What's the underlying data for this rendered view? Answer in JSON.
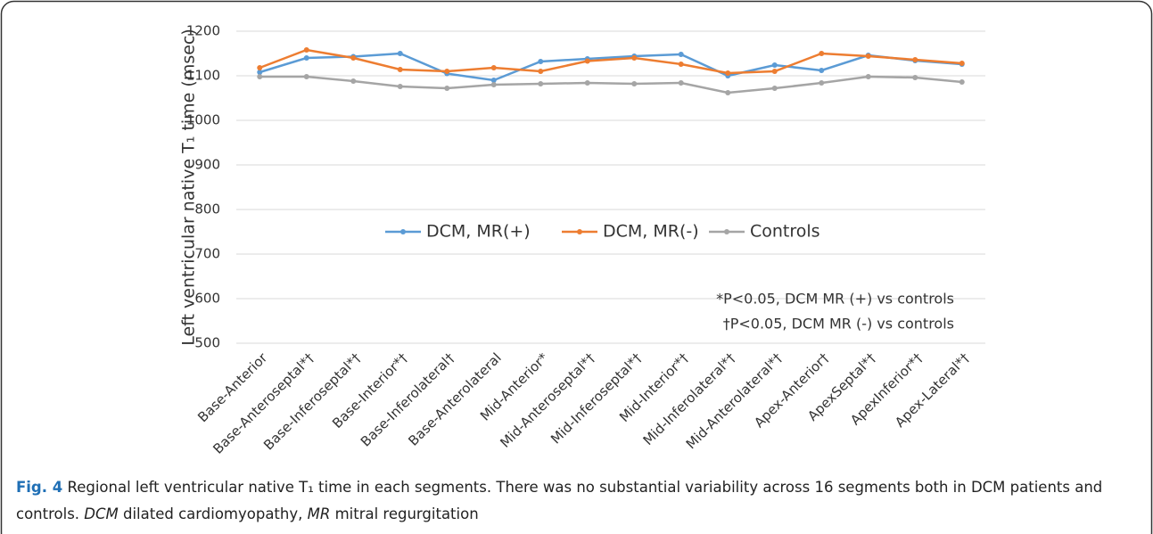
{
  "chart_data": {
    "type": "line",
    "ylabel": "Left ventricular native T₁ time (msec)",
    "categories": [
      "Base-Anterior",
      "Base-Anteroseptal*†",
      "Base-Inferoseptal*†",
      "Base-Interior*†",
      "Base-Inferolateral†",
      "Base-Anterolateral",
      "Mid-Anterior*",
      "Mid-Anteroseptal*†",
      "Mid-Inferoseptal*†",
      "Mid-Interior*†",
      "Mid-Inferolateral*†",
      "Mid-Anterolateral*†",
      "Apex-Anterior†",
      "ApexSeptal*†",
      "ApexInferior*†",
      "Apex-Lateral*†"
    ],
    "series": [
      {
        "name": "DCM, MR(+)",
        "color": "#5b9bd5",
        "values": [
          1108,
          1140,
          1143,
          1150,
          1105,
          1090,
          1132,
          1138,
          1144,
          1148,
          1100,
          1124,
          1112,
          1146,
          1134,
          1126
        ]
      },
      {
        "name": "DCM, MR(-)",
        "color": "#ed7d31",
        "values": [
          1118,
          1158,
          1140,
          1114,
          1110,
          1118,
          1110,
          1133,
          1140,
          1126,
          1106,
          1110,
          1150,
          1144,
          1136,
          1128
        ]
      },
      {
        "name": "Controls",
        "color": "#a5a5a5",
        "values": [
          1098,
          1098,
          1088,
          1076,
          1072,
          1080,
          1082,
          1084,
          1082,
          1084,
          1062,
          1072,
          1084,
          1098,
          1096,
          1086
        ]
      }
    ],
    "ylim": [
      500,
      1200
    ],
    "yticks": [
      500,
      600,
      700,
      800,
      900,
      1000,
      1100,
      1200
    ],
    "grid": true,
    "legend": "center",
    "annotations": [
      "*P<0.05, DCM MR (+) vs controls",
      "†P<0.05, DCM MR (-) vs controls"
    ]
  },
  "caption": [
    {
      "text": "Fig. 4",
      "style": "bold"
    },
    {
      "text": " Regional left ventricular native T₁ time in each segments. There was no substantial variability across 16 segments both in DCM patients and controls. ",
      "style": "normal"
    },
    {
      "text": "DCM",
      "style": "italic"
    },
    {
      "text": " dilated cardiomyopathy, ",
      "style": "normal"
    },
    {
      "text": "MR",
      "style": "italic"
    },
    {
      "text": " mitral regurgitation",
      "style": "normal"
    }
  ]
}
